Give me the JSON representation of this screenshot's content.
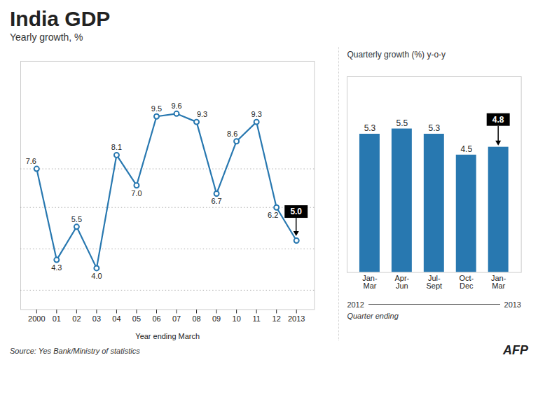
{
  "chart_data": [
    {
      "type": "line",
      "title": "India GDP",
      "subtitle": "Yearly growth, %",
      "x_label": "Year ending March",
      "x": [
        2000,
        2001,
        2002,
        2003,
        2004,
        2005,
        2006,
        2007,
        2008,
        2009,
        2010,
        2011,
        2012,
        2013
      ],
      "values": [
        7.6,
        4.3,
        5.5,
        4.0,
        8.1,
        7.0,
        9.5,
        9.6,
        9.3,
        6.7,
        8.6,
        9.3,
        6.2,
        5.0
      ],
      "value_labels": [
        "7.6",
        "4.3",
        "5.5",
        "4.0",
        "8.1",
        "7.0",
        "9.5",
        "9.6",
        "9.3",
        "6.7",
        "8.6",
        "9.3",
        "6.2",
        "5.0"
      ],
      "color": "#2878b0",
      "marker": "circle",
      "xlim": [
        1999.2,
        2013.9
      ],
      "xticks": [
        2000,
        {
          "value": 2001,
          "label": "01"
        },
        {
          "value": 2002,
          "label": "02"
        },
        {
          "value": 2003,
          "label": "03"
        },
        {
          "value": 2004,
          "label": "04"
        },
        {
          "value": 2005,
          "label": "05"
        },
        {
          "value": 2006,
          "label": "06"
        },
        {
          "value": 2007,
          "label": "07"
        },
        {
          "value": 2008,
          "label": "08"
        },
        {
          "value": 2009,
          "label": "09"
        },
        {
          "value": 2010,
          "label": "10"
        },
        {
          "value": 2011,
          "label": "11"
        },
        {
          "value": 2012,
          "label": "12"
        },
        2013
      ],
      "ylim": [
        2.5,
        11.5
      ],
      "reference_lines": [
        7.6,
        6.2,
        4.7,
        3.2
      ],
      "data_labels": true,
      "tick_labels": "x",
      "grid": false,
      "source": "Source: Yes Bank/Ministry of statistics",
      "credit": "AFP"
    },
    {
      "type": "bar",
      "title": "Quarterly growth (%) y-o-y",
      "categories": [
        "Jan-\nMar",
        "Apr-\nJun",
        "Jul-\nSept",
        "Oct-\nDec",
        "Jan-\nMar"
      ],
      "values": [
        5.3,
        5.5,
        5.3,
        4.5,
        4.8
      ],
      "color": "#2878b0",
      "ylim": [
        0,
        7.5
      ],
      "x_label": "Quarter ending",
      "x_group_labels": [
        "2012",
        "2013"
      ],
      "data_labels": true,
      "tick_labels": "x",
      "grid": false
    }
  ]
}
